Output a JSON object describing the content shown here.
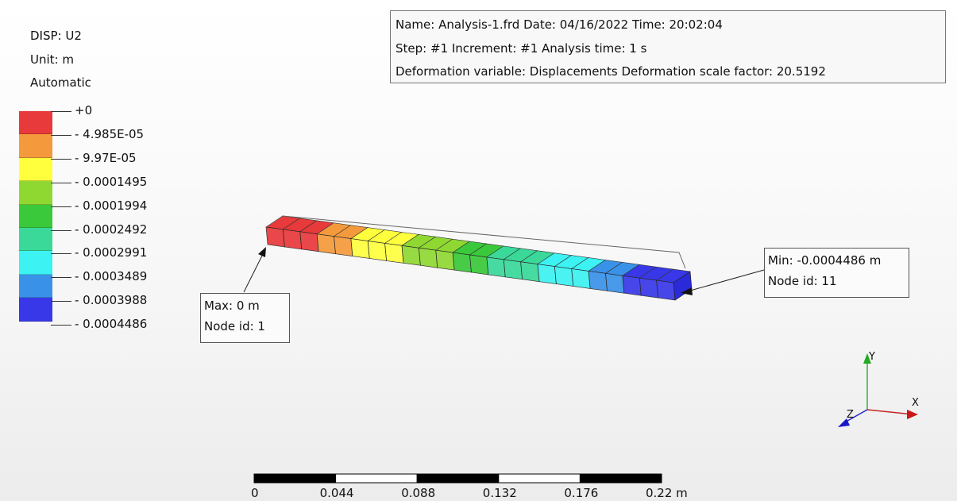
{
  "legend": {
    "variable": "DISP: U2",
    "unit": "Unit: m",
    "mode": "Automatic",
    "colors": [
      "#e8393b",
      "#f59a3c",
      "#ffff3e",
      "#8fd832",
      "#3ac93a",
      "#3ad99a",
      "#3cf2f2",
      "#3a92e8",
      "#3838e8"
    ],
    "ticks": [
      "+0",
      "- 4.985E-05",
      "- 9.97E-05",
      "- 0.0001495",
      "- 0.0001994",
      "- 0.0002492",
      "- 0.0002991",
      "- 0.0003489",
      "- 0.0003988",
      "- 0.0004486"
    ]
  },
  "info": {
    "line1": "Name: Analysis-1.frd   Date: 04/16/2022   Time: 20:02:04",
    "line2": "Step: #1   Increment: #1   Analysis time: 1 s",
    "line3": "Deformation variable: Displacements   Deformation scale factor: 20.5192"
  },
  "max_callout": {
    "value": "Max: 0 m",
    "node": "Node id: 1"
  },
  "min_callout": {
    "value": "Min: -0.0004486 m",
    "node": "Node id: 11"
  },
  "triad": {
    "x": "X",
    "y": "Y",
    "z": "Z"
  },
  "scale_bar": {
    "labels": [
      "0",
      "0.044",
      "0.088",
      "0.132",
      "0.176",
      "0.22 m"
    ]
  }
}
